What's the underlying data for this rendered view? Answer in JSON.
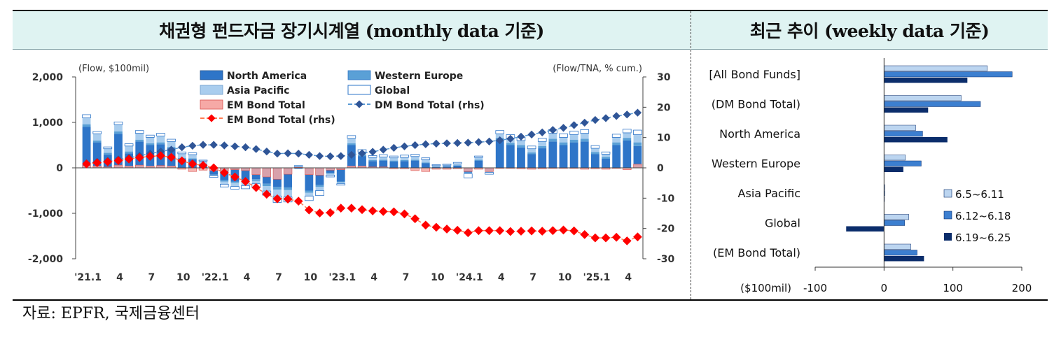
{
  "left_panel": {
    "title": "채권형 펀드자금 장기시계열 (monthly data 기준)"
  },
  "right_panel": {
    "title": "최근 추이 (weekly data 기준)"
  },
  "source": "자료: EPFR, 국제금융센터",
  "colors": {
    "north_america": "#2e75c8",
    "western_europe": "#5aa0d6",
    "asia_pacific": "#a9cdee",
    "global": "#ffffff",
    "global_border": "#2e75c8",
    "em_bar": "#f6a9a6",
    "em_bar_border": "#d9534f",
    "dm_line": "#2f5597",
    "em_line": "#ff3b30",
    "em_marker": "#ff0000",
    "week1": "#bcd5f0",
    "week2": "#3c7fd0",
    "week3": "#0b2d6b"
  },
  "chart_data": [
    {
      "type": "bar",
      "title": "채권형 펀드자금 장기시계열 (monthly data 기준)",
      "ylabel_left": "(Flow, $100mil)",
      "ylabel_right": "(Flow/TNA, % cum.)",
      "ylim_left": [
        -2000,
        2000
      ],
      "ylim_right": [
        -30,
        30
      ],
      "yticks_left": [
        "2,000",
        "1,000",
        "0",
        "-1,000",
        "-2,000"
      ],
      "yticks_right": [
        "30",
        "20",
        "10",
        "0",
        "-10",
        "-20",
        "-30"
      ],
      "xtick_labels": [
        "'21.1",
        "4",
        "7",
        "10",
        "'22.1",
        "4",
        "7",
        "10",
        "'23.1",
        "4",
        "7",
        "10",
        "'24.1",
        "4",
        "7",
        "10",
        "'25.1",
        "4"
      ],
      "legend": {
        "north_america": "North America",
        "western_europe": "Western Europe",
        "asia_pacific": "Asia Pacific",
        "global": "Global",
        "em_bond_total": "EM Bond Total",
        "dm_bond_total_rhs": "DM Bond Total (rhs)",
        "em_bond_total_rhs": "EM Bond Total (rhs)"
      },
      "legend_placement": "top-center",
      "months": 53,
      "series": [
        {
          "name": "North America",
          "values": [
            900,
            560,
            290,
            750,
            320,
            580,
            500,
            520,
            430,
            200,
            190,
            80,
            -150,
            -270,
            -300,
            -280,
            -250,
            -350,
            -420,
            -430,
            -20,
            -500,
            -380,
            -110,
            -300,
            500,
            260,
            150,
            160,
            140,
            150,
            160,
            100,
            20,
            30,
            50,
            -100,
            160,
            -70,
            600,
            500,
            450,
            300,
            430,
            580,
            500,
            560,
            580,
            300,
            200,
            500,
            600,
            480
          ]
        },
        {
          "name": "Western Europe",
          "values": [
            60,
            40,
            40,
            50,
            40,
            40,
            40,
            40,
            30,
            20,
            20,
            10,
            -20,
            -30,
            -30,
            -40,
            -40,
            -50,
            -60,
            -60,
            10,
            -50,
            -40,
            -20,
            -20,
            40,
            30,
            20,
            20,
            20,
            20,
            20,
            20,
            10,
            10,
            10,
            -10,
            20,
            -10,
            60,
            50,
            50,
            40,
            50,
            60,
            60,
            60,
            60,
            50,
            40,
            60,
            60,
            80
          ]
        },
        {
          "name": "Asia Pacific",
          "values": [
            140,
            150,
            90,
            150,
            120,
            140,
            130,
            140,
            120,
            90,
            80,
            60,
            10,
            -60,
            -80,
            -70,
            -60,
            -110,
            -140,
            -150,
            20,
            -70,
            -80,
            -30,
            -30,
            110,
            60,
            60,
            60,
            60,
            60,
            70,
            60,
            20,
            20,
            30,
            -20,
            50,
            -20,
            90,
            100,
            100,
            80,
            100,
            120,
            110,
            110,
            120,
            80,
            60,
            110,
            110,
            170
          ]
        },
        {
          "name": "Global",
          "values": [
            70,
            50,
            40,
            60,
            50,
            60,
            50,
            60,
            50,
            40,
            40,
            20,
            -40,
            -60,
            -60,
            -70,
            -70,
            -90,
            -140,
            -110,
            20,
            -100,
            -110,
            -40,
            -30,
            60,
            50,
            40,
            50,
            40,
            50,
            50,
            40,
            20,
            20,
            30,
            -90,
            30,
            -40,
            70,
            80,
            70,
            60,
            70,
            80,
            80,
            80,
            80,
            60,
            50,
            70,
            80,
            100
          ]
        },
        {
          "name": "EM Bond Total",
          "values": [
            50,
            40,
            20,
            60,
            40,
            60,
            40,
            50,
            40,
            -30,
            -80,
            -50,
            -60,
            -70,
            -40,
            -60,
            -150,
            -200,
            -250,
            -140,
            10,
            -150,
            -160,
            -50,
            -40,
            40,
            40,
            20,
            20,
            -20,
            -20,
            -60,
            -80,
            -30,
            -30,
            -20,
            -80,
            -30,
            -80,
            -10,
            -10,
            -20,
            -30,
            -20,
            -10,
            -10,
            -10,
            -30,
            -20,
            -30,
            -10,
            -40,
            80
          ]
        },
        {
          "name": "DM Bond Total (rhs)",
          "values": [
            1.5,
            2,
            2.3,
            2.8,
            3.3,
            4,
            4.7,
            5.4,
            6,
            6.8,
            7.3,
            7.6,
            7.6,
            7.4,
            7.1,
            6.8,
            6.2,
            5.4,
            4.7,
            4.8,
            4.7,
            4.3,
            3.9,
            3.8,
            3.9,
            4.3,
            4.8,
            5.3,
            6,
            6.6,
            7.1,
            7.5,
            7.8,
            8,
            8.1,
            8.2,
            8.3,
            8.5,
            8.7,
            9.1,
            9.6,
            10.3,
            11,
            11.7,
            12.5,
            13.2,
            14.1,
            14.9,
            15.8,
            16.4,
            17.1,
            17.6,
            18.2
          ]
        },
        {
          "name": "EM Bond Total (rhs)",
          "values": [
            1.3,
            1.7,
            2,
            2.4,
            2.9,
            3.4,
            3.8,
            4,
            3.5,
            2.3,
            1.3,
            0.8,
            0,
            -1.6,
            -3,
            -4.5,
            -6.5,
            -8.7,
            -10.2,
            -10.3,
            -11,
            -13.9,
            -14.9,
            -14.8,
            -13.3,
            -13.3,
            -13.8,
            -14.2,
            -14.4,
            -14.5,
            -15.2,
            -16.8,
            -18.9,
            -19.6,
            -20.2,
            -20.6,
            -21.4,
            -20.7,
            -20.7,
            -20.7,
            -21.0,
            -20.9,
            -20.8,
            -20.9,
            -20.7,
            -20.5,
            -20.8,
            -22.0,
            -23.1,
            -23.1,
            -22.9,
            -24.1,
            -22.8
          ]
        }
      ]
    },
    {
      "type": "bar",
      "orientation": "horizontal",
      "title": "최근 추이 (weekly data 기준)",
      "xlabel": "($100mil)",
      "xlim": [
        -100,
        200
      ],
      "xticks": [
        "-100",
        "0",
        "100",
        "200"
      ],
      "categories": [
        "[All Bond Funds]",
        "(DM Bond Total)",
        "North America",
        "Western Europe",
        "Asia Pacific",
        "Global",
        "(EM Bond Total)"
      ],
      "series": [
        {
          "name": "6.5~6.11",
          "values": [
            150,
            112,
            46,
            31,
            1,
            36,
            39
          ]
        },
        {
          "name": "6.12~6.18",
          "values": [
            186,
            140,
            56,
            54,
            1,
            30,
            48
          ]
        },
        {
          "name": "6.19~6.25",
          "values": [
            121,
            64,
            92,
            28,
            0,
            -55,
            58
          ]
        }
      ],
      "legend_placement": "right"
    }
  ]
}
